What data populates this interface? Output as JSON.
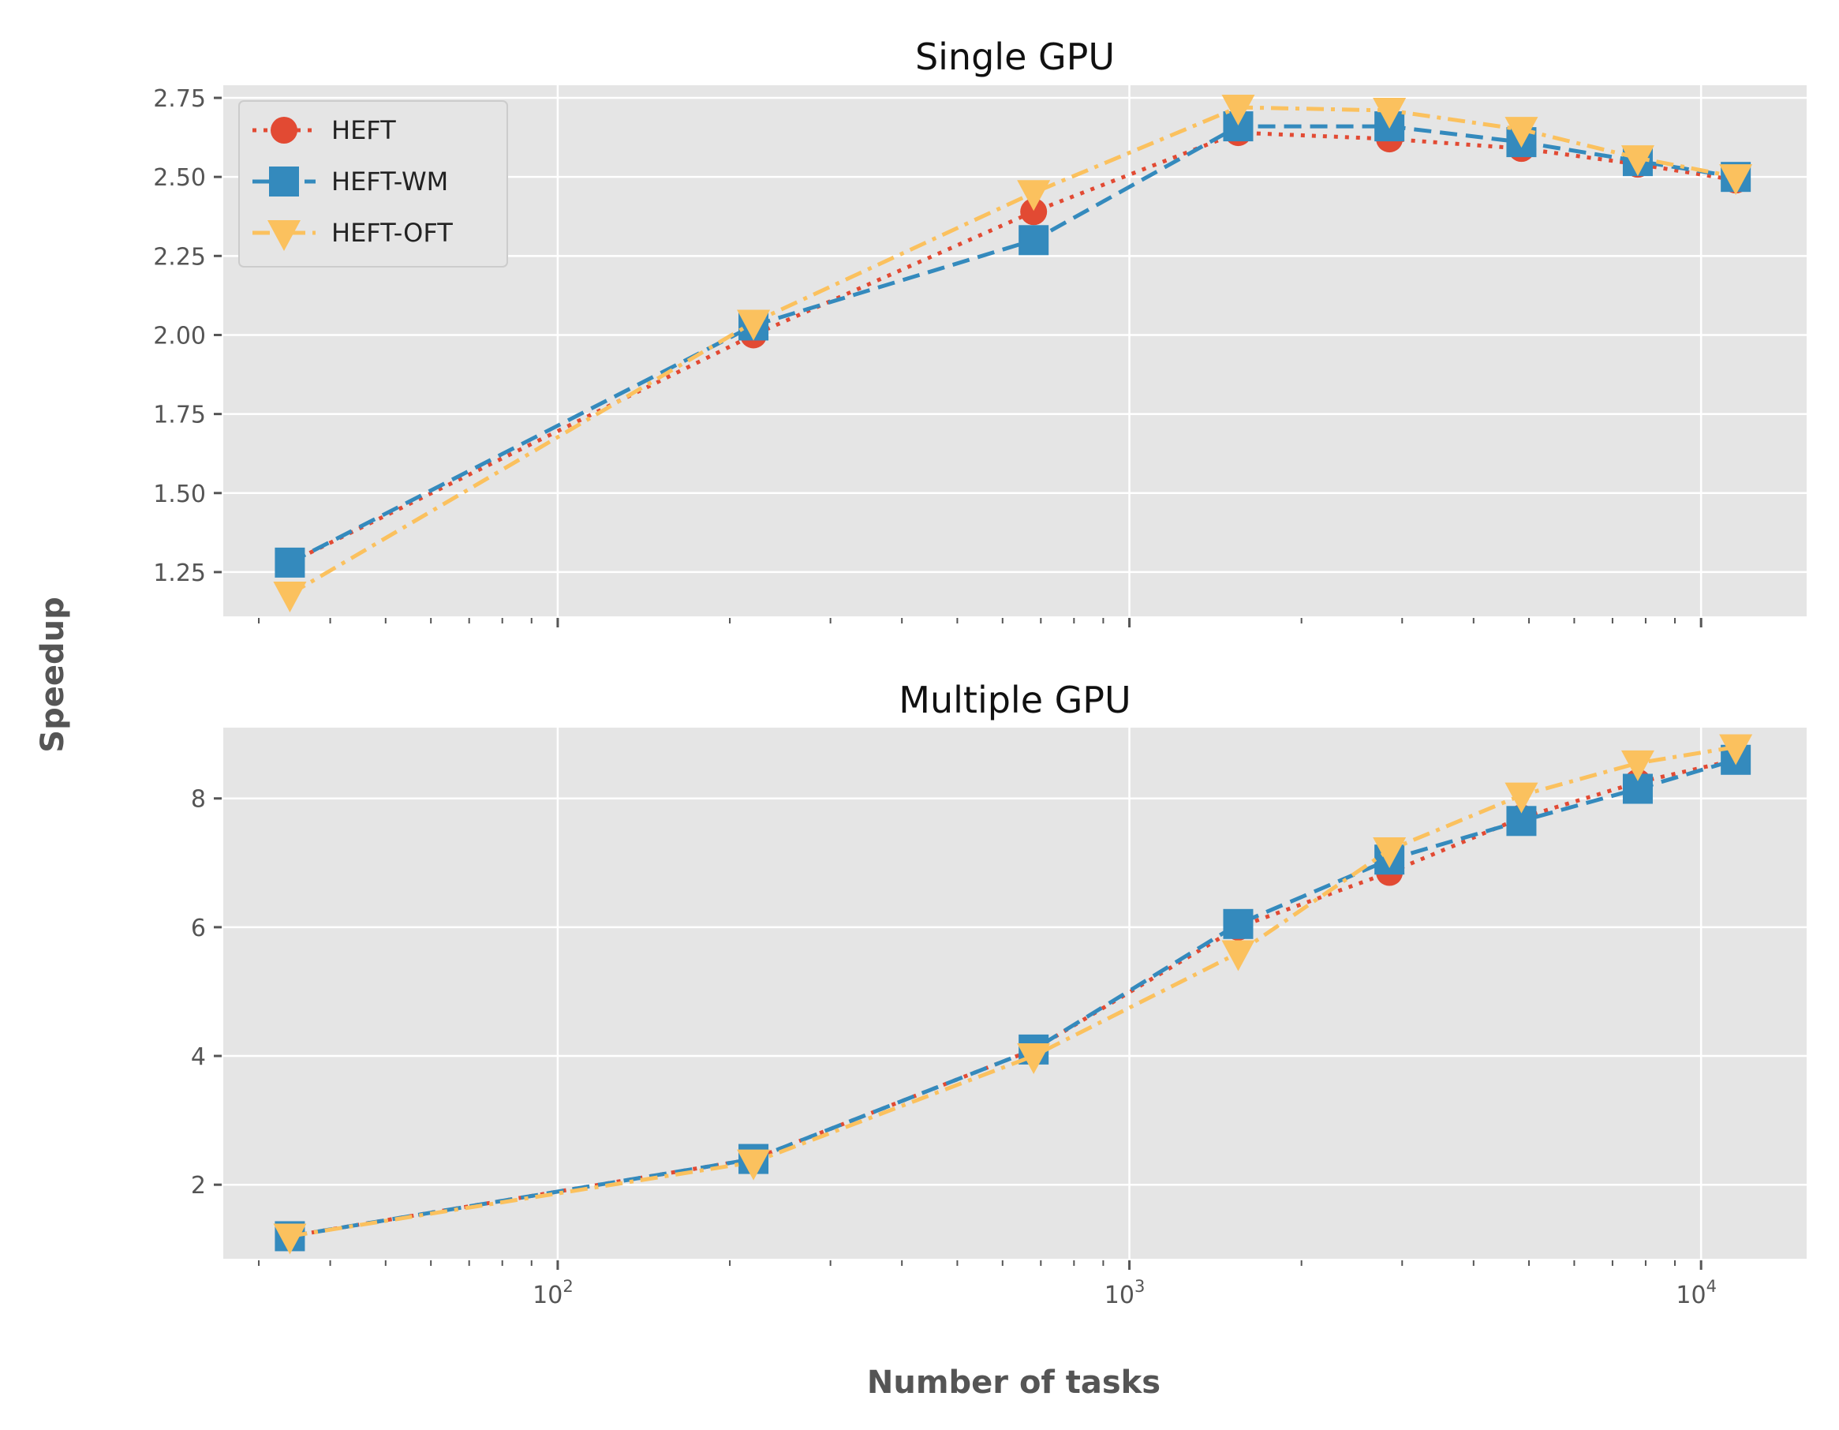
{
  "chart_data": [
    {
      "type": "line",
      "title": "Single GPU",
      "xscale": "log",
      "xlim": [
        26,
        15300
      ],
      "ylim": [
        1.11,
        2.79
      ],
      "grid": true,
      "legend_position": "top-left",
      "yticks": [
        1.25,
        1.5,
        1.75,
        2.0,
        2.25,
        2.5,
        2.75
      ],
      "ytick_labels": [
        "1.25",
        "1.50",
        "1.75",
        "2.00",
        "2.25",
        "2.50",
        "2.75"
      ],
      "x": [
        34,
        220,
        680,
        1550,
        2850,
        4850,
        7750,
        11500
      ],
      "series": [
        {
          "name": "HEFT",
          "color": "#E24A33",
          "marker": "circle",
          "line_style": "dotted",
          "values": [
            1.28,
            2.0,
            2.39,
            2.64,
            2.62,
            2.59,
            2.54,
            2.49
          ]
        },
        {
          "name": "HEFT-WM",
          "color": "#348ABD",
          "marker": "square",
          "line_style": "dashed",
          "values": [
            1.28,
            2.03,
            2.3,
            2.66,
            2.66,
            2.61,
            2.55,
            2.5
          ]
        },
        {
          "name": "HEFT-OFT",
          "color": "#FBC15E",
          "marker": "triangle-down",
          "line_style": "dashdot",
          "values": [
            1.18,
            2.04,
            2.45,
            2.72,
            2.71,
            2.65,
            2.56,
            2.5
          ]
        }
      ]
    },
    {
      "type": "line",
      "title": "Multiple GPU",
      "xscale": "log",
      "xlim": [
        26,
        15300
      ],
      "ylim": [
        0.85,
        9.1
      ],
      "grid": true,
      "yticks": [
        2,
        4,
        6,
        8
      ],
      "ytick_labels": [
        "2",
        "4",
        "6",
        "8"
      ],
      "x": [
        34,
        220,
        680,
        1550,
        2850,
        4850,
        7750,
        11500
      ],
      "xtick_labels": [
        {
          "base": "10",
          "exp": "2",
          "value": 100
        },
        {
          "base": "10",
          "exp": "3",
          "value": 1000
        },
        {
          "base": "10",
          "exp": "4",
          "value": 10000
        }
      ],
      "series": [
        {
          "name": "HEFT",
          "color": "#E24A33",
          "marker": "circle",
          "line_style": "dotted",
          "values": [
            1.2,
            2.4,
            4.1,
            6.0,
            6.85,
            7.7,
            8.25,
            8.6
          ]
        },
        {
          "name": "HEFT-WM",
          "color": "#348ABD",
          "marker": "square",
          "line_style": "dashed",
          "values": [
            1.2,
            2.4,
            4.1,
            6.05,
            7.05,
            7.65,
            8.15,
            8.6
          ]
        },
        {
          "name": "HEFT-OFT",
          "color": "#FBC15E",
          "marker": "triangle-down",
          "line_style": "dashdot",
          "values": [
            1.2,
            2.35,
            4.0,
            5.6,
            7.2,
            8.05,
            8.55,
            8.8
          ]
        }
      ]
    }
  ],
  "xlabel": "Number of tasks",
  "ylabel": "Speedup",
  "colors": {
    "panel_background": "#E5E5E5",
    "grid": "#FFFFFF",
    "tick": "#555555"
  }
}
